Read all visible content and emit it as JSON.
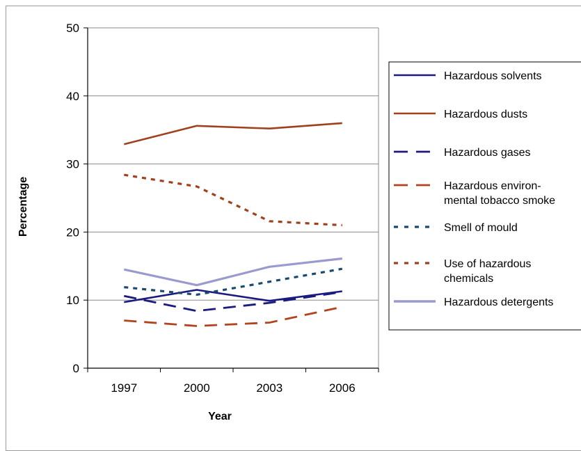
{
  "chart_data": {
    "type": "line",
    "title": "",
    "xlabel": "Year",
    "ylabel": "Percentage",
    "x": [
      "1997",
      "2000",
      "2003",
      "2006"
    ],
    "ylim": [
      0,
      50
    ],
    "yticks": [
      0,
      10,
      20,
      30,
      40,
      50
    ],
    "grid": "horizontal",
    "legend_position": "right",
    "series": [
      {
        "name": "Hazardous solvents",
        "values": [
          9.7,
          11.5,
          9.9,
          11.3
        ],
        "color": "#1a1a80",
        "dash": "solid"
      },
      {
        "name": "Hazardous dusts",
        "values": [
          32.9,
          35.6,
          35.2,
          36.0
        ],
        "color": "#a0401e",
        "dash": "solid"
      },
      {
        "name": "Hazardous gases",
        "values": [
          10.6,
          8.4,
          9.6,
          11.2
        ],
        "color": "#1a1a80",
        "dash": "longdash"
      },
      {
        "name": [
          "Hazardous environ-",
          "mental tobacco smoke"
        ],
        "values": [
          7.0,
          6.2,
          6.7,
          9.0
        ],
        "color": "#b0441e",
        "dash": "longdash"
      },
      {
        "name": "Smell of mould",
        "values": [
          11.9,
          10.8,
          12.7,
          14.6
        ],
        "color": "#1a4a70",
        "dash": "dotted"
      },
      {
        "name": [
          "Use of hazardous",
          "chemicals"
        ],
        "values": [
          28.4,
          26.7,
          21.6,
          21.0
        ],
        "color": "#a0401e",
        "dash": "dotted"
      },
      {
        "name": "Hazardous detergents",
        "values": [
          14.5,
          12.2,
          14.9,
          16.1
        ],
        "color": "#9a9ad0",
        "dash": "solid"
      }
    ]
  }
}
